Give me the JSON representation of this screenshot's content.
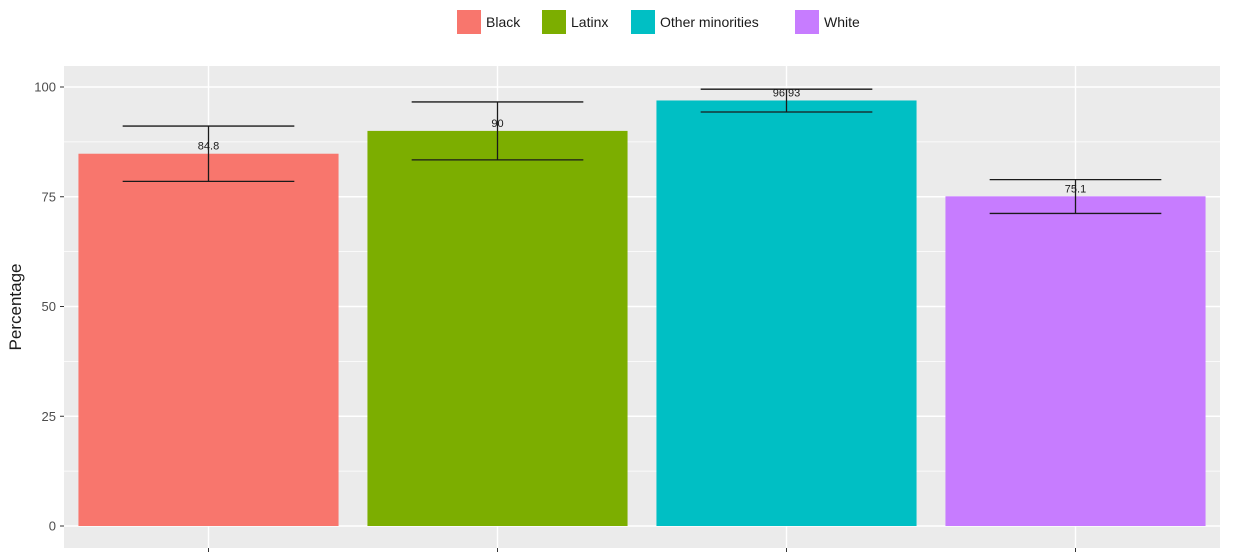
{
  "chart_data": {
    "type": "bar",
    "ylabel": "Percentage",
    "xlabel": "",
    "ylim": [
      0,
      100
    ],
    "yticks": [
      0,
      25,
      50,
      75,
      100
    ],
    "grid": true,
    "legend_position": "top",
    "categories": [
      "Black",
      "Latinx",
      "Other minorities",
      "White"
    ],
    "values": [
      84.8,
      90,
      96.93,
      75.1
    ],
    "value_labels": [
      "84.8",
      "90",
      "96.93",
      "75.1"
    ],
    "error_low": [
      78.5,
      83.4,
      94.3,
      71.2
    ],
    "error_high": [
      91.1,
      96.6,
      99.5,
      78.9
    ],
    "colors": [
      "#F8766D",
      "#7CAE00",
      "#00BFC4",
      "#C77CFF"
    ],
    "panel_background": "#EBEBEB",
    "grid_color": "#FFFFFF"
  }
}
